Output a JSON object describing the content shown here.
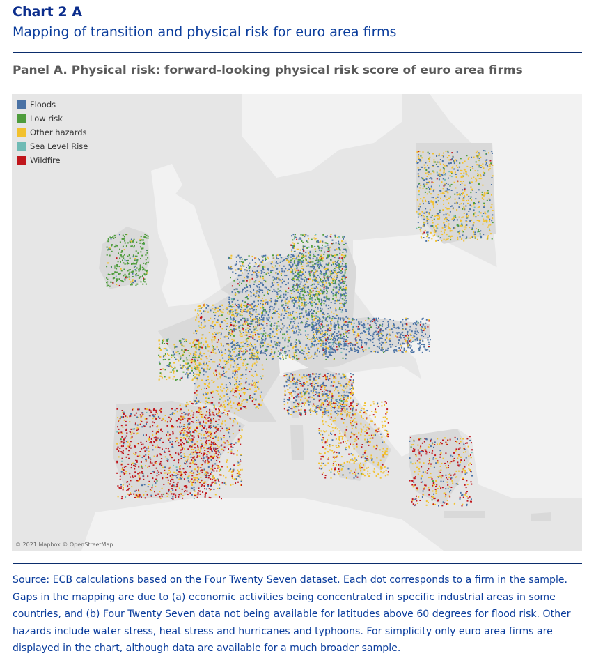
{
  "header": {
    "chart_label": "Chart 2 A",
    "title": "Mapping of transition and physical risk for euro area firms"
  },
  "panel": {
    "title": "Panel A. Physical risk: forward-looking physical risk score of euro area firms"
  },
  "legend": {
    "items": [
      {
        "label": "Floods",
        "color": "#4a72a5"
      },
      {
        "label": "Low risk",
        "color": "#4e9c3c"
      },
      {
        "label": "Other hazards",
        "color": "#f2c12e"
      },
      {
        "label": "Sea Level Rise",
        "color": "#6fbbb5"
      },
      {
        "label": "Wildfire",
        "color": "#c0161c"
      }
    ]
  },
  "map": {
    "attribution": "© 2021 Mapbox © OpenStreetMap",
    "land_color": "#f2f2f2",
    "sea_color": "#e6e6e6",
    "euro_area_color": "#d9d9d9"
  },
  "footer": {
    "source": "Source: ECB calculations based on the Four Twenty Seven dataset. Each dot corresponds to a firm in the sample. Gaps in the mapping are due to (a) economic activities being concentrated in specific industrial areas in some countries, and (b) Four Twenty Seven data not being available for latitudes above 60 degrees for flood risk. Other hazards include water stress, heat stress and hurricanes and typhoons. For simplicity only euro area firms are displayed in the chart, although data are available for a much broader sample."
  }
}
